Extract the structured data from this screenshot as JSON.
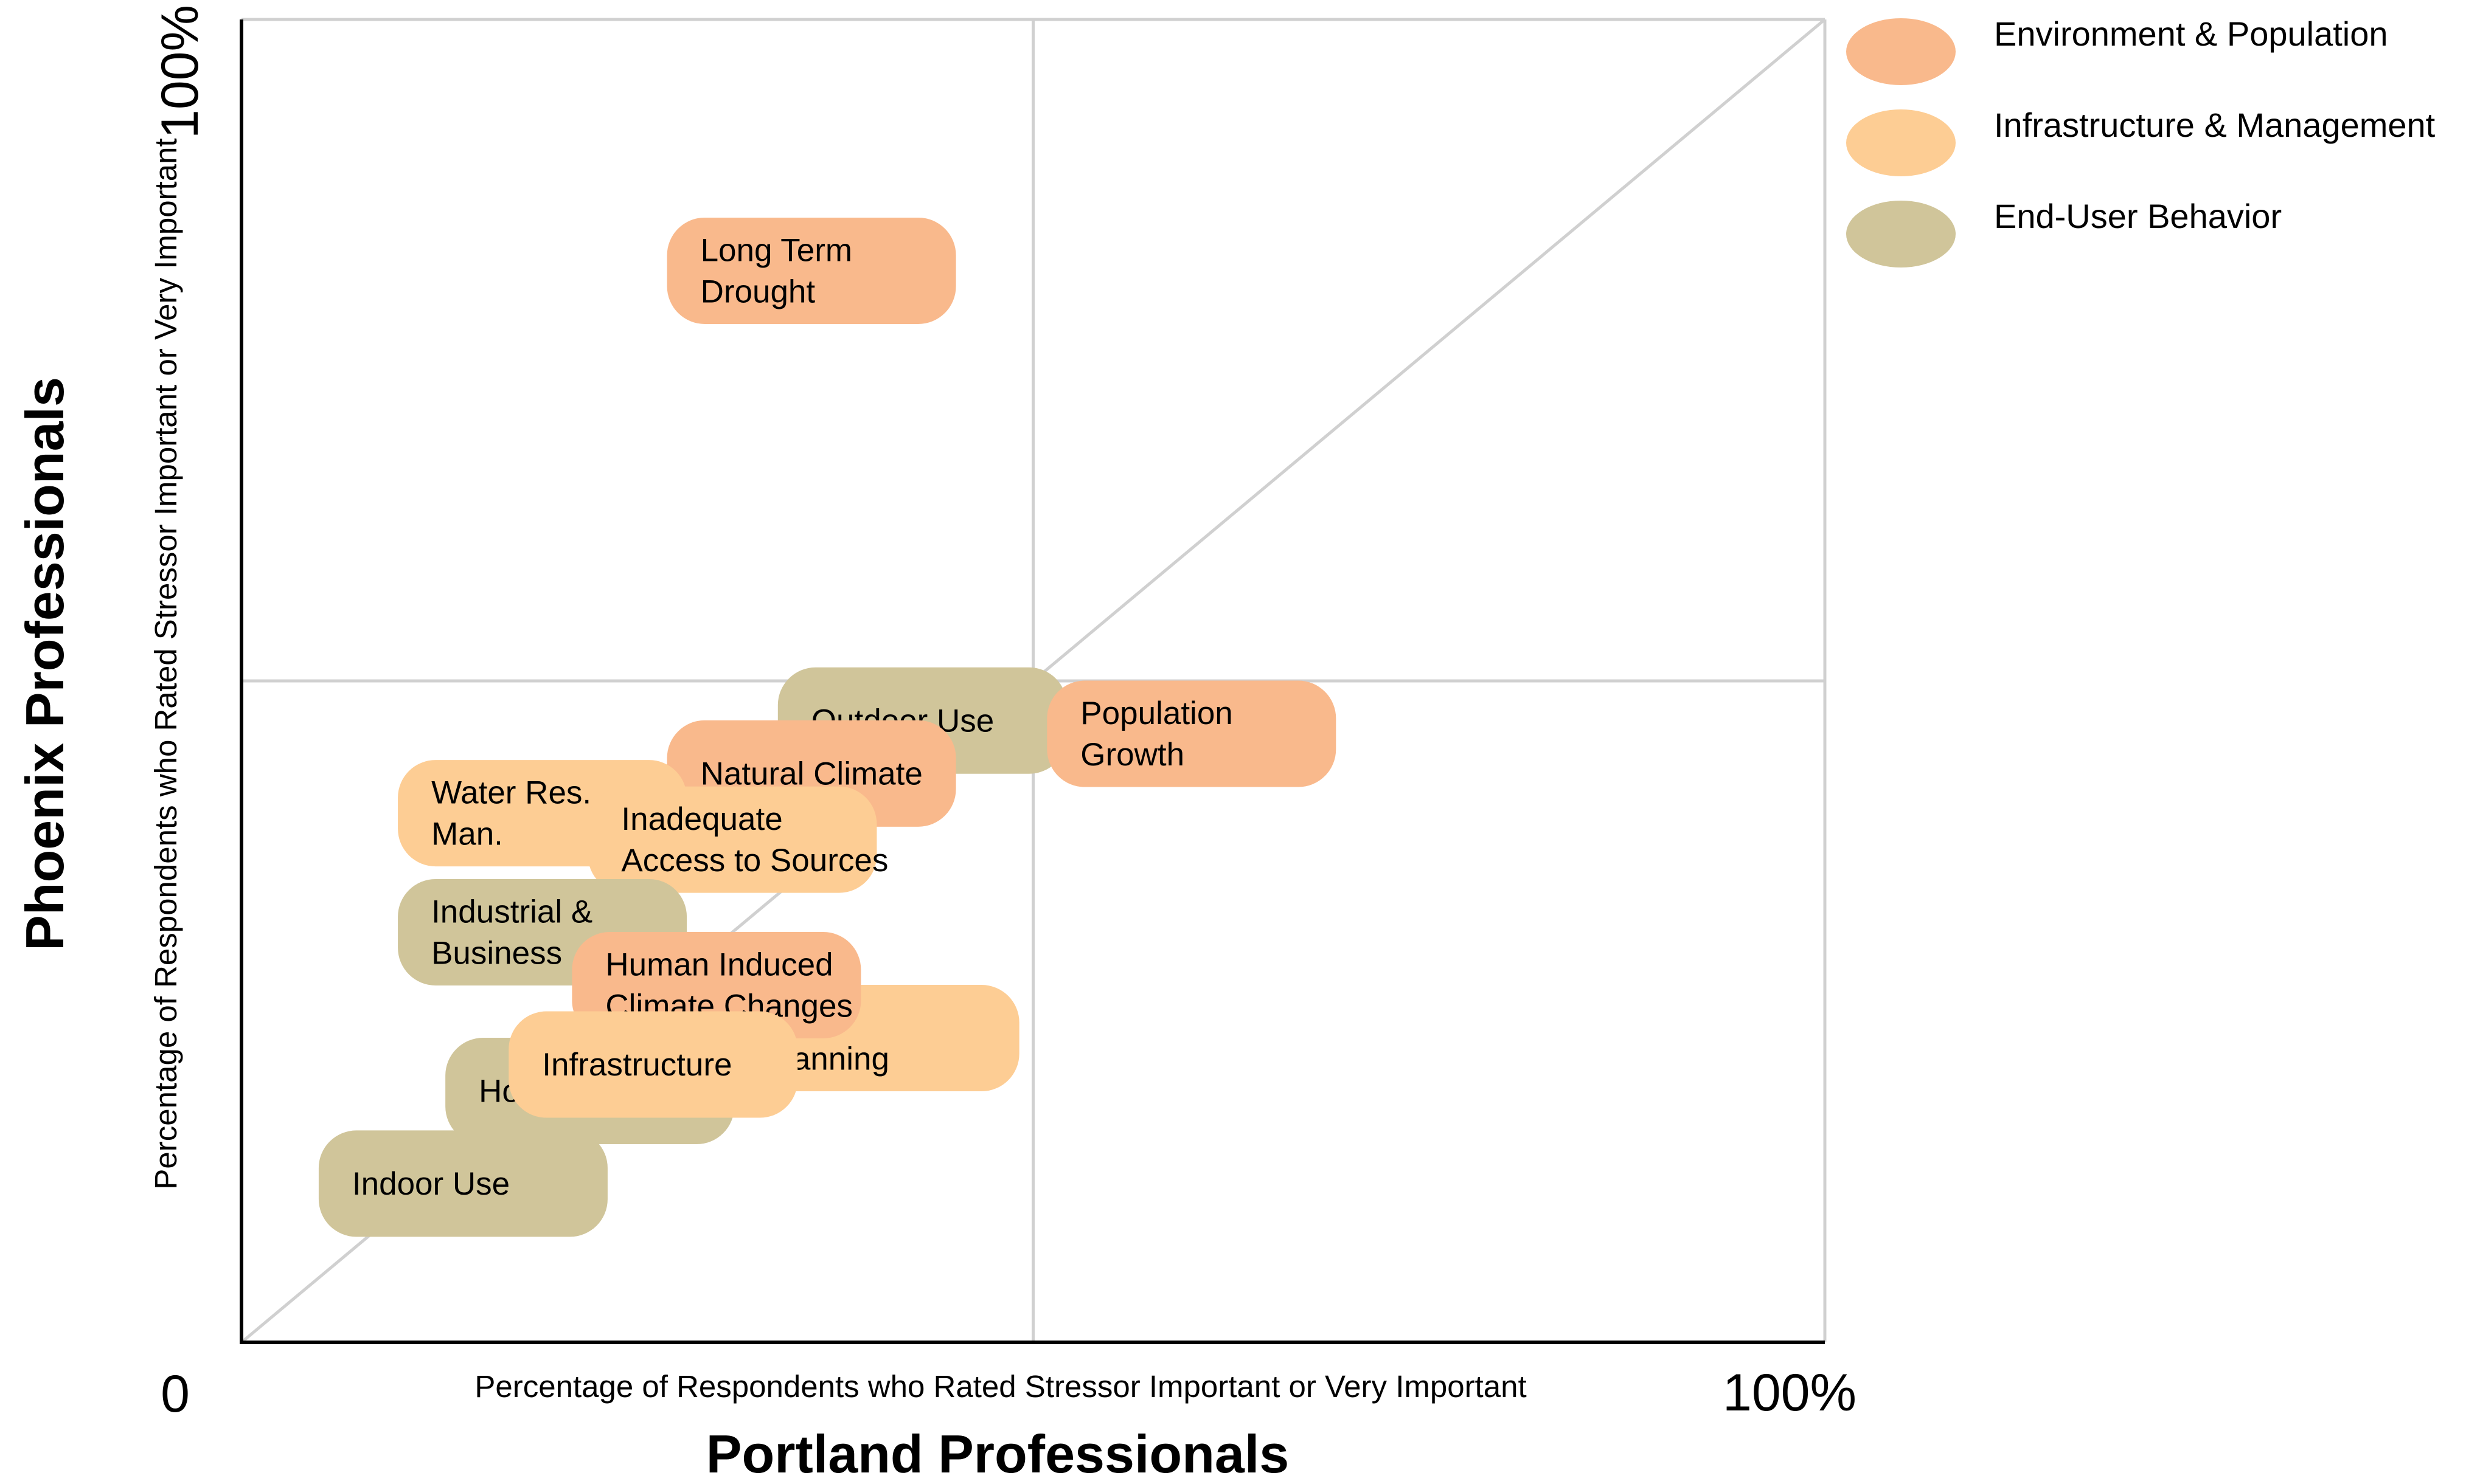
{
  "chart_data": {
    "type": "scatter",
    "title": "",
    "xlabel": "Portland Professionals",
    "xlabel_sub": "Percentage of Respondents who Rated Stressor Important or Very Important",
    "ylabel": "Phoenix Professionals",
    "ylabel_sub": "Percentage of Respondents who Rated Stressor Important or Very Important",
    "xlim": [
      0,
      100
    ],
    "ylim": [
      0,
      100
    ],
    "x_tick_labels": {
      "min": "0",
      "max": "100%"
    },
    "y_tick_labels": {
      "max": "100%"
    },
    "grid": "midlines at 50%",
    "reference_line": "diagonal y = x",
    "legend_position": "top-right",
    "categories": [
      {
        "name": "Environment & Population",
        "color": "#f9b98c"
      },
      {
        "name": "Infrastructure & Management",
        "color": "#fdcd94"
      },
      {
        "name": "End-User Behavior",
        "color": "#d0c59a"
      }
    ],
    "points": [
      {
        "label": [
          "Long Term",
          "Drought"
        ],
        "category": 0,
        "x": 36,
        "y": 81
      },
      {
        "label": [
          "Outdoor Use"
        ],
        "category": 2,
        "x": 43,
        "y": 47
      },
      {
        "label": [
          "Population",
          "Growth"
        ],
        "category": 0,
        "x": 60,
        "y": 46
      },
      {
        "label": [
          "Natural Climate"
        ],
        "category": 0,
        "x": 36,
        "y": 43
      },
      {
        "label": [
          "Water Res.",
          "Man."
        ],
        "category": 1,
        "x": 19,
        "y": 40
      },
      {
        "label": [
          "Inadequate",
          "Access to Sources"
        ],
        "category": 1,
        "x": 31,
        "y": 38
      },
      {
        "label": [
          "Industrial &",
          "Business"
        ],
        "category": 2,
        "x": 19,
        "y": 31
      },
      {
        "label": [
          "LU",
          "Planning"
        ],
        "category": 1,
        "x": 40,
        "y": 23
      },
      {
        "label": [
          "Human Induced",
          "Climate Changes"
        ],
        "category": 0,
        "x": 30,
        "y": 27
      },
      {
        "label": [
          "Household Use"
        ],
        "category": 2,
        "x": 22,
        "y": 19
      },
      {
        "label": [
          "Infrastructure"
        ],
        "category": 1,
        "x": 26,
        "y": 21
      },
      {
        "label": [
          "Indoor Use"
        ],
        "category": 2,
        "x": 14,
        "y": 12
      }
    ]
  }
}
